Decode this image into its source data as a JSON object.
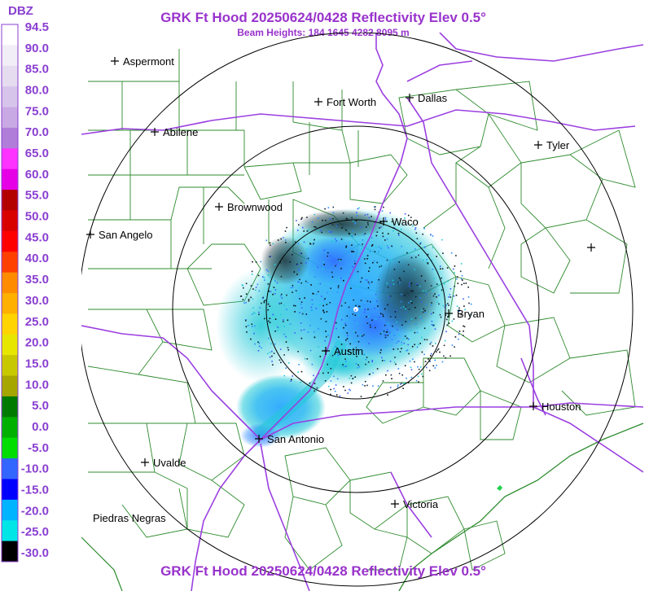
{
  "header": {
    "title": "GRK Ft Hood 20250624/0428 Reflectivity Elev 0.5°",
    "subtitle": "Beam Heights: 184 1645 4282 8095 m"
  },
  "footer": {
    "title": "GRK Ft Hood 20250624/0428 Reflectivity Elev 0.5°"
  },
  "legend": {
    "title": "DBZ",
    "labels": [
      "94.5",
      "90.0",
      "85.0",
      "80.0",
      "75.0",
      "70.0",
      "65.0",
      "60.0",
      "55.0",
      "50.0",
      "45.0",
      "40.0",
      "35.0",
      "30.0",
      "25.0",
      "20.0",
      "15.0",
      "10.0",
      "5.0",
      "0.0",
      "-5.0",
      "-10.0",
      "-15.0",
      "-20.0",
      "-25.0",
      "-30.0"
    ],
    "colors": [
      "#ffffff",
      "#f2eef7",
      "#e6dcf0",
      "#d7c4ea",
      "#c9a9e3",
      "#b07ed8",
      "#ff33ff",
      "#e600e6",
      "#b30000",
      "#d90000",
      "#ff0000",
      "#ff4000",
      "#ff8c00",
      "#ffb000",
      "#ffd400",
      "#e6e600",
      "#c8c800",
      "#a6a600",
      "#007a00",
      "#00b000",
      "#00dd00",
      "#3366ff",
      "#0000ff",
      "#00b4ff",
      "#00e6e6",
      "#000000"
    ]
  },
  "cities": [
    {
      "name": "Aspermont",
      "icon": "plus-marker-icon"
    },
    {
      "name": "Fort Worth",
      "icon": "plus-marker-icon"
    },
    {
      "name": "Dallas",
      "icon": "plus-marker-icon"
    },
    {
      "name": "Abilene",
      "icon": "plus-marker-icon"
    },
    {
      "name": "Tyler",
      "icon": "plus-marker-icon"
    },
    {
      "name": "Brownwood",
      "icon": "plus-marker-icon"
    },
    {
      "name": "Waco",
      "icon": "plus-marker-icon"
    },
    {
      "name": "San Angelo",
      "icon": "plus-marker-icon"
    },
    {
      "name": "Bryan",
      "icon": "plus-marker-icon"
    },
    {
      "name": "Austin",
      "icon": "plus-marker-icon"
    },
    {
      "name": "Houston",
      "icon": "plus-marker-icon"
    },
    {
      "name": "San Antonio",
      "icon": "plus-marker-icon"
    },
    {
      "name": "Uvalde",
      "icon": "plus-marker-icon"
    },
    {
      "name": "Victoria",
      "icon": "plus-marker-icon"
    },
    {
      "name": "Piedras Negras",
      "icon": ""
    }
  ],
  "colors": {
    "title": "#9933cc",
    "counties": "#2e8b2e",
    "highways": "#9b3fe0",
    "range_rings": "#000000"
  }
}
